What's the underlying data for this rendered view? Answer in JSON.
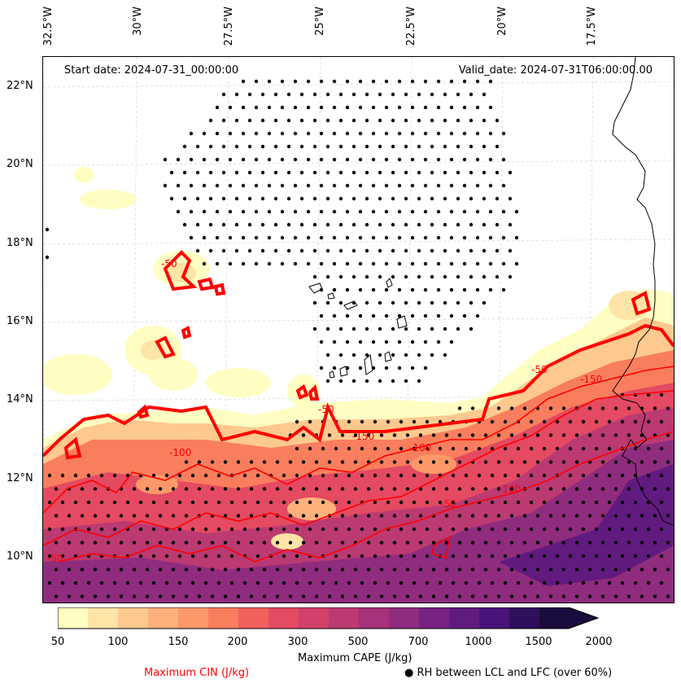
{
  "map": {
    "start_date": "Start date: 2024-07-31_00:00:00",
    "valid_date": "Valid_date: 2024-07-31T06:00:00.00",
    "lon_labels": [
      "32.5°W",
      "30°W",
      "27.5°W",
      "25°W",
      "22.5°W",
      "20°W",
      "17.5°W"
    ],
    "lat_labels": [
      "22°N",
      "20°N",
      "18°N",
      "16°N",
      "14°N",
      "12°N",
      "10°N"
    ],
    "colorbar": {
      "label": "Maximum CAPE (J/kg)",
      "tick_labels": [
        "50",
        "100",
        "150",
        "200",
        "300",
        "500",
        "700",
        "1000",
        "1500",
        "2000"
      ],
      "colors": [
        "#fefec2",
        "#fee4a6",
        "#fec98e",
        "#feb17a",
        "#fd9968",
        "#f97e5d",
        "#f1605d",
        "#e44a62",
        "#d1416b",
        "#bb3a72",
        "#a5327a",
        "#8f2c7e",
        "#782281",
        "#611b7f",
        "#4a137a",
        "#2f0f5b",
        "#1a0d3d"
      ]
    },
    "contour_labels": [
      "-50",
      "-100",
      "-150",
      "-50",
      "-100",
      "-150",
      "-50",
      "-100",
      "-50",
      "-50"
    ],
    "legend": {
      "cin": "Maximum CIN (J/kg)",
      "rh": "● RH between LCL and LFC (over 60%)",
      "cin_color": "#ff0000"
    }
  }
}
